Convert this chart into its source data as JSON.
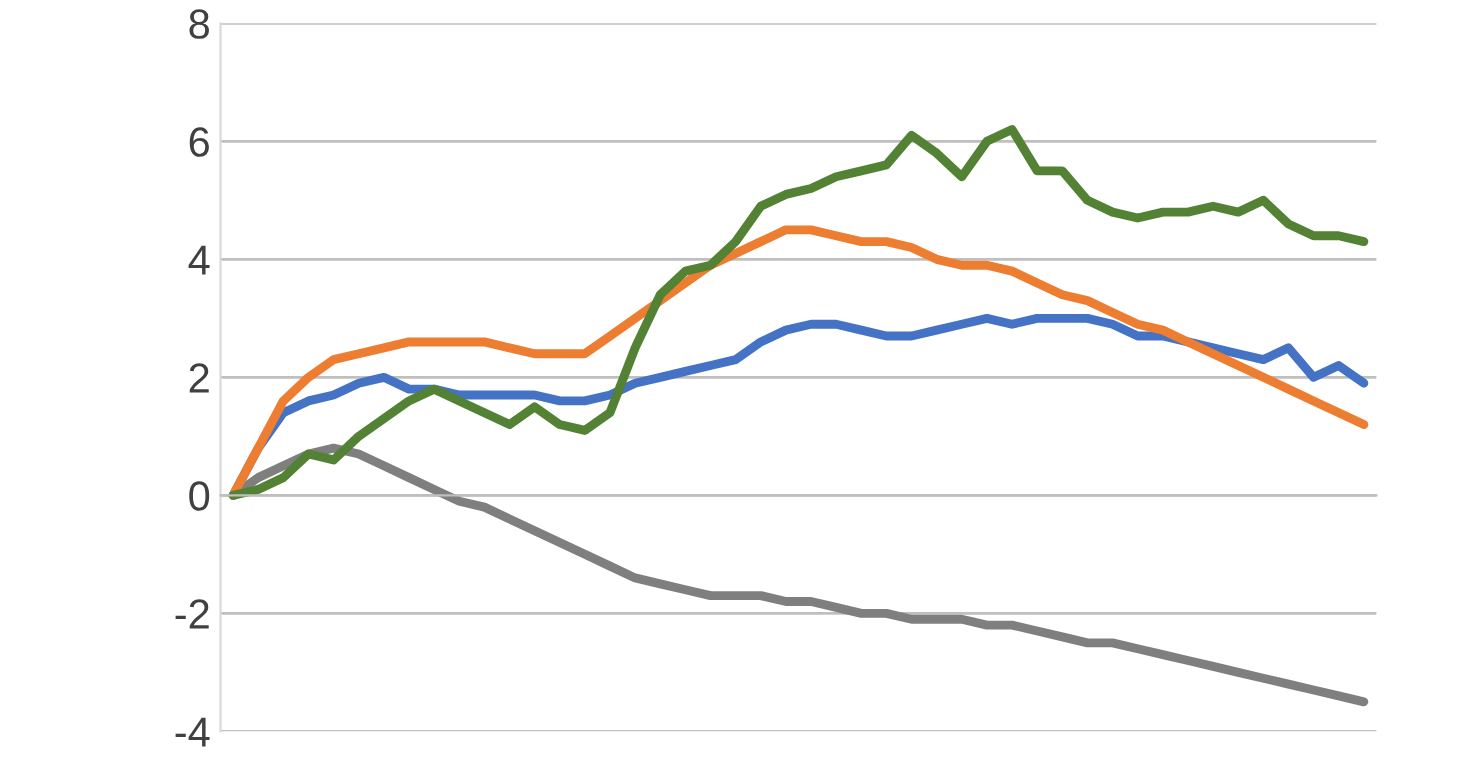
{
  "chart_data": {
    "type": "line",
    "categories": [
      null,
      null,
      null,
      null,
      null,
      null,
      null,
      null,
      null,
      null,
      null,
      null,
      null,
      null,
      null,
      null,
      null,
      null,
      null,
      null,
      null,
      null,
      null,
      null,
      null,
      null,
      null,
      null,
      null,
      null,
      null,
      null,
      null,
      null,
      null,
      null,
      null,
      null,
      null,
      null,
      null,
      null,
      null,
      null,
      null,
      null
    ],
    "series": [
      {
        "color": "#7f7f7f",
        "values": [
          0,
          0.3,
          0.5,
          0.7,
          0.8,
          0.7,
          0.5,
          0.3,
          0.1,
          -0.1,
          -0.2,
          -0.4,
          -0.6,
          -0.8,
          -1.0,
          -1.2,
          -1.4,
          -1.5,
          -1.6,
          -1.7,
          -1.7,
          -1.7,
          -1.8,
          -1.8,
          -1.9,
          -2.0,
          -2.0,
          -2.1,
          -2.1,
          -2.1,
          -2.2,
          -2.2,
          -2.3,
          -2.4,
          -2.5,
          -2.5,
          -2.6,
          -2.7,
          -2.8,
          -2.9,
          -3.0,
          -3.1,
          -3.2,
          -3.3,
          -3.4,
          -3.5
        ]
      },
      {
        "color": "#4472c4",
        "values": [
          0,
          0.8,
          1.4,
          1.6,
          1.7,
          1.9,
          2.0,
          1.8,
          1.8,
          1.7,
          1.7,
          1.7,
          1.7,
          1.6,
          1.6,
          1.7,
          1.9,
          2.0,
          2.1,
          2.2,
          2.3,
          2.6,
          2.8,
          2.9,
          2.9,
          2.8,
          2.7,
          2.7,
          2.8,
          2.9,
          3.0,
          2.9,
          3.0,
          3.0,
          3.0,
          2.9,
          2.7,
          2.7,
          2.6,
          2.5,
          2.4,
          2.3,
          2.5,
          2.0,
          2.2,
          1.9
        ]
      },
      {
        "color": "#ed7d31",
        "values": [
          0,
          0.8,
          1.6,
          2.0,
          2.3,
          2.4,
          2.5,
          2.6,
          2.6,
          2.6,
          2.6,
          2.5,
          2.4,
          2.4,
          2.4,
          2.7,
          3.0,
          3.3,
          3.6,
          3.9,
          4.1,
          4.3,
          4.5,
          4.5,
          4.4,
          4.3,
          4.3,
          4.2,
          4.0,
          3.9,
          3.9,
          3.8,
          3.6,
          3.4,
          3.3,
          3.1,
          2.9,
          2.8,
          2.6,
          2.4,
          2.2,
          2.0,
          1.8,
          1.6,
          1.4,
          1.2
        ]
      },
      {
        "color": "#548235",
        "values": [
          0,
          0.1,
          0.3,
          0.7,
          0.6,
          1.0,
          1.3,
          1.6,
          1.8,
          1.6,
          1.4,
          1.2,
          1.5,
          1.2,
          1.1,
          1.4,
          2.5,
          3.4,
          3.8,
          3.9,
          4.3,
          4.9,
          5.1,
          5.2,
          5.4,
          5.5,
          5.6,
          6.1,
          5.8,
          5.4,
          6.0,
          6.2,
          5.5,
          5.5,
          5.0,
          4.8,
          4.7,
          4.8,
          4.8,
          4.9,
          4.8,
          5.0,
          4.6,
          4.4,
          4.4,
          4.3
        ]
      }
    ],
    "ylim": [
      -4,
      8
    ],
    "yticks": [
      -4,
      -2,
      0,
      2,
      4,
      6,
      8
    ],
    "grid": "y",
    "tick_labels": "y",
    "marker": "none",
    "line_style": "solid"
  }
}
